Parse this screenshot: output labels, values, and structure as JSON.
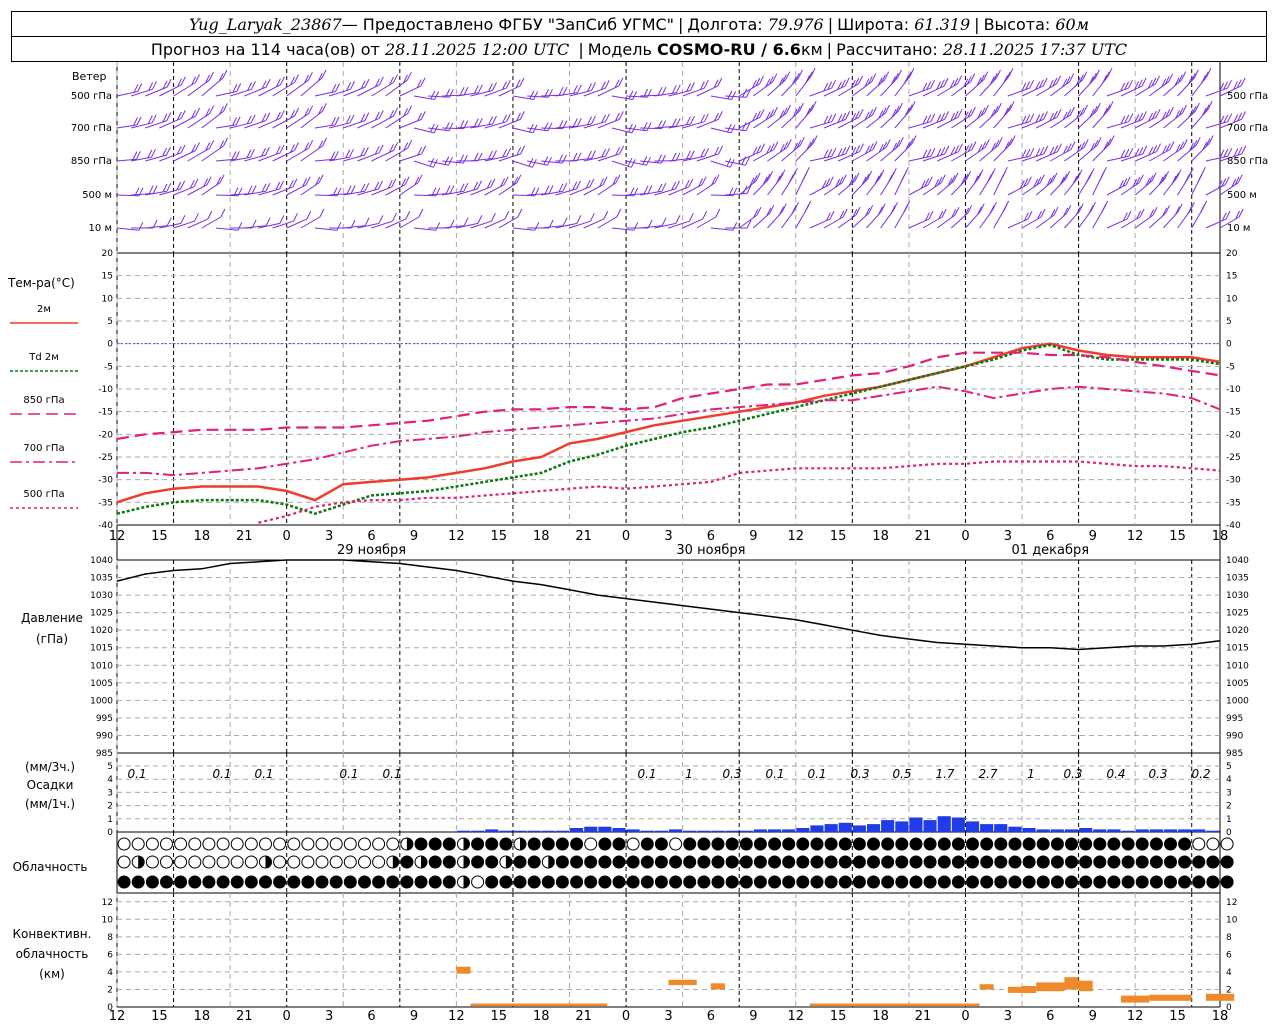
{
  "header": {
    "station": "Yug_Laryak_23867",
    "provider": " — Предоставлено ФГБУ \"ЗапСиб УГМС\"",
    "lon_label": "Долгота:",
    "lon": "79.976",
    "lat_label": "Широта:",
    "lat": "61.319",
    "alt_label": "Высота:",
    "alt": "60м",
    "forecast_label": "Прогноз на 114 часа(ов) от",
    "forecast_from": "28.11.2025 12:00 UTC",
    "model_label": "Модель",
    "model": "COSMO-RU / 6.6",
    "model_unit": "км",
    "calc_label": "Рассчитано:",
    "calc_time": "28.11.2025 17:37 UTC"
  },
  "time_axis": {
    "hour_labels": [
      "12",
      "15",
      "18",
      "21",
      "0",
      "3",
      "6",
      "9",
      "12",
      "15",
      "18",
      "21",
      "0",
      "3",
      "6",
      "9",
      "12",
      "15",
      "18",
      "21",
      "0",
      "3",
      "6",
      "9",
      "12",
      "15",
      "18"
    ],
    "date_labels": [
      "29 ноября",
      "30 ноября",
      "01 декабря"
    ]
  },
  "wind_panel": {
    "title": "Ветер",
    "levels": [
      "500 гПа",
      "700 гПа",
      "850 гПа",
      "500 м",
      "10 м"
    ]
  },
  "temp_panel": {
    "title": "Тем-ра(°С)",
    "legend": [
      {
        "label": "2м",
        "color": "#f03c2c",
        "style": "solid"
      },
      {
        "label": "Td 2м",
        "color": "#0a7a10",
        "style": "dotted"
      },
      {
        "label": "850 гПа",
        "color": "#e0207a",
        "style": "dash"
      },
      {
        "label": "700 гПа",
        "color": "#e0207a",
        "style": "dashdot"
      },
      {
        "label": "500 гПа",
        "color": "#e0207a",
        "style": "dot"
      }
    ],
    "ticks": [
      "20",
      "15",
      "10",
      "5",
      "0",
      "-5",
      "-10",
      "-15",
      "-20",
      "-25",
      "-30",
      "-35",
      "-40"
    ]
  },
  "pressure_panel": {
    "title": "Давление",
    "unit": "(гПа)",
    "ticks": [
      "1040",
      "1035",
      "1030",
      "1025",
      "1020",
      "1015",
      "1010",
      "1005",
      "1000",
      "995",
      "990",
      "985"
    ]
  },
  "precip_panel": {
    "unit3": "(мм/3ч.)",
    "title": "Осадки",
    "unit1": "(мм/1ч.)",
    "ticks": [
      "5",
      "4",
      "3",
      "2",
      "1",
      "0"
    ],
    "totals": [
      "0.1",
      "0.1",
      "0.1",
      "0.1",
      "0.1",
      "0.1",
      "1",
      "0.3",
      "0.1",
      "0.1",
      "0.3",
      "0.5",
      "1.7",
      "2.7",
      "1",
      "0.3",
      "0.4",
      "0.3",
      "0.2"
    ]
  },
  "cloud_panel": {
    "title": "Облачность"
  },
  "conv_panel": {
    "title1": "Конвективн.",
    "title2": "облачность",
    "unit": "(км)",
    "ticks": [
      "12",
      "10",
      "8",
      "6",
      "4",
      "2",
      "0"
    ]
  },
  "chart_data": [
    {
      "type": "line",
      "title": "Тем-ра(°С)",
      "x_hours_from_start": [
        0,
        3,
        6,
        9,
        12,
        15,
        18,
        21,
        24,
        27,
        30,
        33,
        36,
        39,
        42,
        45,
        48,
        51,
        54,
        57,
        60,
        63,
        66,
        69,
        72,
        75,
        78,
        81,
        84,
        87,
        90,
        93,
        96,
        99,
        102,
        105,
        108,
        111,
        114,
        117,
        120,
        123,
        126,
        129,
        132,
        135,
        138,
        141,
        144,
        147,
        150,
        153,
        156,
        159,
        162,
        165,
        168,
        171,
        174,
        177,
        180,
        183,
        186,
        189,
        192,
        195,
        198,
        201,
        204,
        207,
        210,
        213,
        216,
        219,
        222,
        225,
        228,
        231,
        234
      ],
      "ylim": [
        -40,
        20
      ],
      "series": [
        {
          "name": "2м",
          "color": "#f03c2c",
          "x": [
            0,
            6,
            12,
            18,
            24,
            30,
            36,
            42,
            48,
            54,
            60,
            66,
            72,
            78,
            84,
            90,
            96,
            102,
            108,
            114,
            120,
            126,
            132,
            138,
            144,
            150,
            156,
            162,
            168,
            174,
            180,
            186,
            192,
            198,
            204,
            210,
            216,
            222,
            228,
            234
          ],
          "y": [
            -35,
            -33,
            -32,
            -31.5,
            -31.5,
            -31.5,
            -32.5,
            -34.5,
            -31,
            -30.5,
            -30,
            -29.5,
            -28.5,
            -27.5,
            -26,
            -25,
            -22,
            -21,
            -19.5,
            -18,
            -17,
            -16,
            -15,
            -14,
            -13,
            -11.5,
            -10.5,
            -9.5,
            -8,
            -6.5,
            -5,
            -3,
            -1,
            0,
            -1.5,
            -2.5,
            -3,
            -3,
            -3,
            -4
          ]
        },
        {
          "name": "Td 2м",
          "color": "#0a7a10",
          "x": [
            0,
            6,
            12,
            18,
            24,
            30,
            36,
            42,
            48,
            54,
            60,
            66,
            72,
            78,
            84,
            90,
            96,
            102,
            108,
            114,
            120,
            126,
            132,
            138,
            144,
            150,
            156,
            162,
            168,
            174,
            180,
            186,
            192,
            198,
            204,
            210,
            216,
            222,
            228,
            234
          ],
          "y": [
            -37.5,
            -36,
            -35,
            -34.5,
            -34.5,
            -34.5,
            -35.5,
            -37.5,
            -35.5,
            -33.5,
            -33,
            -32.5,
            -31.5,
            -30.5,
            -29.5,
            -28.5,
            -26,
            -24.5,
            -22.5,
            -21,
            -19.5,
            -18.5,
            -17,
            -15.5,
            -14,
            -12.5,
            -11,
            -9.5,
            -8,
            -6.5,
            -5,
            -3.5,
            -1.5,
            -0.3,
            -2.5,
            -3.5,
            -3.5,
            -3.5,
            -3.5,
            -4.5
          ]
        },
        {
          "name": "850 гПа",
          "color": "#e0207a",
          "x": [
            0,
            6,
            12,
            18,
            24,
            30,
            36,
            42,
            48,
            54,
            60,
            66,
            72,
            78,
            84,
            90,
            96,
            102,
            108,
            114,
            120,
            126,
            132,
            138,
            144,
            150,
            156,
            162,
            168,
            174,
            180,
            186,
            192,
            198,
            204,
            210,
            216,
            222,
            228,
            234
          ],
          "y": [
            -21,
            -20,
            -19.5,
            -19,
            -19,
            -19,
            -18.5,
            -18.5,
            -18.5,
            -18,
            -17.5,
            -17,
            -16,
            -15,
            -14.5,
            -14.5,
            -14,
            -14,
            -14.5,
            -14,
            -12,
            -11,
            -10,
            -9,
            -9,
            -8,
            -7,
            -6.5,
            -5,
            -3,
            -2,
            -2,
            -2,
            -2.5,
            -2.5,
            -3,
            -4,
            -5,
            -6,
            -7
          ]
        },
        {
          "name": "700 гПа",
          "color": "#e0207a",
          "x": [
            0,
            6,
            12,
            18,
            24,
            30,
            36,
            42,
            48,
            54,
            60,
            66,
            72,
            78,
            84,
            90,
            96,
            102,
            108,
            114,
            120,
            126,
            132,
            138,
            144,
            150,
            156,
            162,
            168,
            174,
            180,
            186,
            192,
            198,
            204,
            210,
            216,
            222,
            228,
            234
          ],
          "y": [
            -28.5,
            -28.5,
            -29,
            -28.5,
            -28,
            -27.5,
            -26.5,
            -25.5,
            -24,
            -22.5,
            -21.5,
            -21,
            -20.5,
            -19.5,
            -19,
            -18.5,
            -18,
            -17.5,
            -17,
            -16.5,
            -15.5,
            -14.5,
            -14,
            -13.5,
            -13,
            -12.5,
            -12.5,
            -11.5,
            -10.5,
            -9.5,
            -10.5,
            -12,
            -11,
            -10,
            -9.5,
            -10,
            -10.5,
            -11,
            -12,
            -14.5
          ]
        },
        {
          "name": "500 гПа",
          "color": "#e0207a",
          "x": [
            30,
            36,
            42,
            48,
            54,
            60,
            66,
            72,
            78,
            84,
            90,
            96,
            102,
            108,
            114,
            120,
            126,
            132,
            138,
            144,
            150,
            156,
            162,
            168,
            174,
            180,
            186,
            192,
            198,
            204,
            210,
            216,
            222,
            228,
            234
          ],
          "y": [
            -39.5,
            -38,
            -36,
            -35,
            -34.5,
            -34.5,
            -34,
            -34,
            -33.5,
            -33,
            -32.5,
            -32,
            -31.5,
            -32,
            -31.5,
            -31,
            -30.5,
            -28.5,
            -28,
            -27.5,
            -27.5,
            -27.5,
            -27.5,
            -27,
            -26.5,
            -26.5,
            -26,
            -26,
            -26,
            -26,
            -26.5,
            -27,
            -27,
            -27.5,
            -28
          ]
        }
      ]
    },
    {
      "type": "line",
      "title": "Давление",
      "ylim": [
        985,
        1040
      ],
      "x": [
        0,
        6,
        12,
        18,
        24,
        30,
        36,
        42,
        48,
        54,
        60,
        66,
        72,
        78,
        84,
        90,
        96,
        102,
        108,
        114,
        120,
        126,
        132,
        138,
        144,
        150,
        156,
        162,
        168,
        174,
        180,
        186,
        192,
        198,
        204,
        210,
        216,
        222,
        228,
        234
      ],
      "y": [
        1034,
        1036,
        1037,
        1037.5,
        1039,
        1039.5,
        1040,
        1040,
        1040,
        1039.5,
        1039,
        1038,
        1037,
        1035.5,
        1034,
        1033,
        1031.5,
        1030,
        1029,
        1028,
        1027,
        1026,
        1025,
        1024,
        1023,
        1021.5,
        1020,
        1018.5,
        1017.5,
        1016.5,
        1016,
        1015.5,
        1015,
        1015,
        1014.5,
        1015,
        1015.5,
        1015.5,
        1016,
        1017
      ]
    },
    {
      "type": "bar",
      "title": "Осадки",
      "ylim": [
        0,
        5
      ],
      "x": [
        72,
        75,
        78,
        81,
        84,
        87,
        90,
        93,
        96,
        99,
        102,
        105,
        108,
        111,
        114,
        117,
        120,
        123,
        126,
        129,
        132,
        135,
        138,
        141,
        144,
        147,
        150,
        153,
        156,
        159,
        162,
        165,
        168,
        171,
        174,
        177,
        180,
        183,
        186,
        189,
        192,
        195,
        198,
        201,
        204,
        207,
        210,
        213,
        216,
        219,
        222,
        225,
        228,
        231
      ],
      "y": [
        0.1,
        0.1,
        0.2,
        0.1,
        0.1,
        0.1,
        0.1,
        0.1,
        0.3,
        0.4,
        0.4,
        0.3,
        0.2,
        0.1,
        0.1,
        0.2,
        0.1,
        0.1,
        0.1,
        0.1,
        0.1,
        0.2,
        0.2,
        0.2,
        0.3,
        0.5,
        0.6,
        0.7,
        0.5,
        0.6,
        0.9,
        0.8,
        1.1,
        0.9,
        1.2,
        1.1,
        0.8,
        0.6,
        0.6,
        0.4,
        0.3,
        0.2,
        0.2,
        0.2,
        0.3,
        0.2,
        0.2,
        0.1,
        0.2,
        0.2,
        0.2,
        0.2,
        0.2,
        0.1
      ]
    },
    {
      "type": "bar",
      "title": "Конвективн. облачность",
      "ylim": [
        0,
        13
      ],
      "segments": [
        {
          "x0": 72,
          "x1": 75,
          "base": 3.8,
          "top": 4.6
        },
        {
          "x0": 75,
          "x1": 104,
          "base": 0.1,
          "top": 0.4
        },
        {
          "x0": 117,
          "x1": 123,
          "base": 2.5,
          "top": 3.1
        },
        {
          "x0": 126,
          "x1": 129,
          "base": 2.0,
          "top": 2.7
        },
        {
          "x0": 147,
          "x1": 183,
          "base": 0.1,
          "top": 0.4
        },
        {
          "x0": 183,
          "x1": 186,
          "base": 2.0,
          "top": 2.6
        },
        {
          "x0": 189,
          "x1": 192,
          "base": 1.6,
          "top": 2.3
        },
        {
          "x0": 192,
          "x1": 195,
          "base": 1.6,
          "top": 2.4
        },
        {
          "x0": 195,
          "x1": 201,
          "base": 1.8,
          "top": 2.8
        },
        {
          "x0": 201,
          "x1": 204,
          "base": 2.0,
          "top": 3.4
        },
        {
          "x0": 204,
          "x1": 207,
          "base": 1.8,
          "top": 3.0
        },
        {
          "x0": 213,
          "x1": 219,
          "base": 0.5,
          "top": 1.3
        },
        {
          "x0": 219,
          "x1": 228,
          "base": 0.7,
          "top": 1.4
        },
        {
          "x0": 231,
          "x1": 237,
          "base": 0.7,
          "top": 1.5
        }
      ]
    }
  ]
}
